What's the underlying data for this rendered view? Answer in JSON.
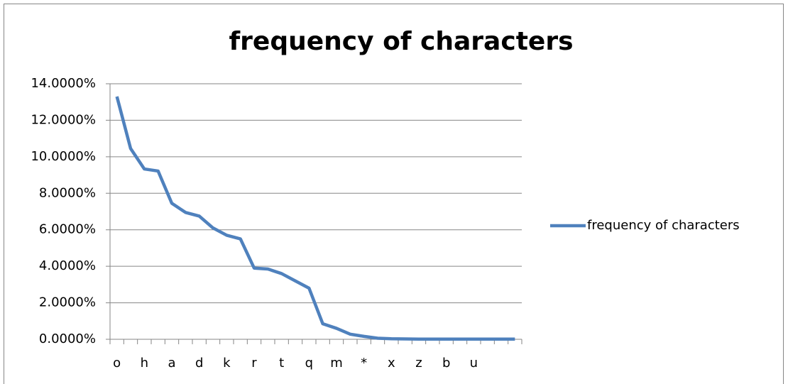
{
  "chart_data": {
    "type": "line",
    "title": "frequency of characters",
    "categories": [
      "o",
      null,
      "h",
      null,
      "a",
      null,
      "d",
      null,
      "k",
      null,
      "r",
      null,
      "t",
      null,
      "q",
      null,
      "m",
      null,
      "*",
      null,
      "x",
      null,
      "z",
      null,
      "b",
      null,
      "u",
      null,
      null,
      null
    ],
    "series": [
      {
        "name": "frequency of characters",
        "color": "#4f81bd",
        "values": [
          13.3,
          10.45,
          9.33,
          9.22,
          7.45,
          6.95,
          6.75,
          6.1,
          5.7,
          5.5,
          3.9,
          3.85,
          3.6,
          3.2,
          2.8,
          0.85,
          0.6,
          0.28,
          0.16,
          0.06,
          0.03,
          0.02,
          0.01,
          0.01,
          0.01,
          0.01,
          0.01,
          0.01,
          0.01,
          0.01
        ]
      }
    ],
    "ylim": [
      0,
      14
    ],
    "yticks": [
      {
        "value": 0,
        "label": "0.0000%"
      },
      {
        "value": 2,
        "label": "2.0000%"
      },
      {
        "value": 4,
        "label": "4.0000%"
      },
      {
        "value": 6,
        "label": "6.0000%"
      },
      {
        "value": 8,
        "label": "8.0000%"
      },
      {
        "value": 10,
        "label": "10.0000%"
      },
      {
        "value": 12,
        "label": "12.0000%"
      },
      {
        "value": 14,
        "label": "14.0000%"
      }
    ],
    "grid": true,
    "legend": "right"
  }
}
